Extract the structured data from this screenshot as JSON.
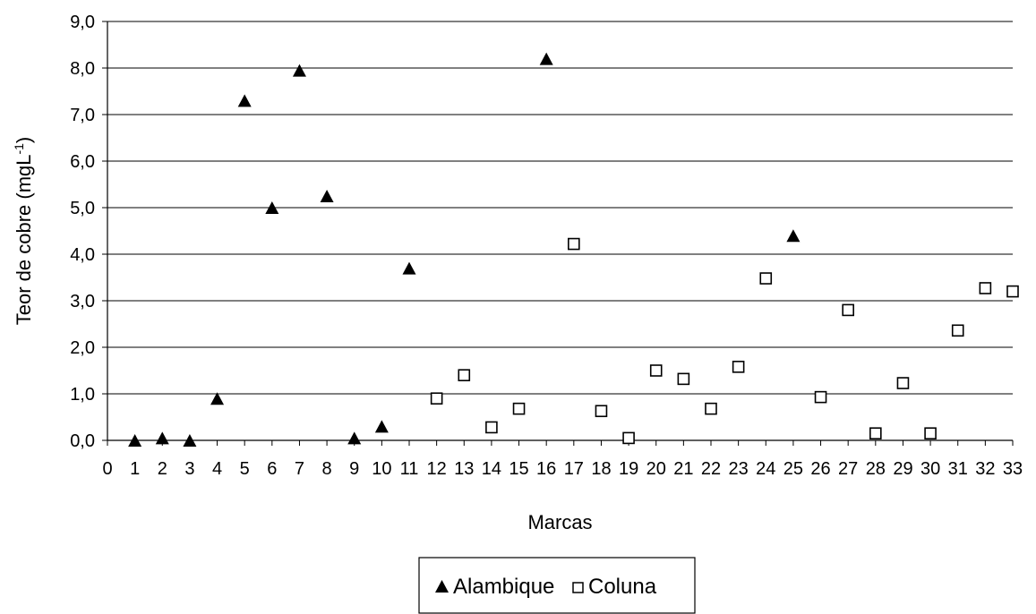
{
  "chart_data": {
    "type": "scatter",
    "title": "",
    "xlabel": "Marcas",
    "ylabel": "Teor de cobre (mgL",
    "ylabel_superscript": "-1",
    "ylabel_close": ")",
    "xlim": [
      0,
      33
    ],
    "ylim": [
      0,
      9
    ],
    "x_ticks": [
      0,
      1,
      2,
      3,
      4,
      5,
      6,
      7,
      8,
      9,
      10,
      11,
      12,
      13,
      14,
      15,
      16,
      17,
      18,
      19,
      20,
      21,
      22,
      23,
      24,
      25,
      26,
      27,
      28,
      29,
      30,
      31,
      32,
      33
    ],
    "y_ticks": [
      "0,0",
      "1,0",
      "2,0",
      "3,0",
      "4,0",
      "5,0",
      "6,0",
      "7,0",
      "8,0",
      "9,0"
    ],
    "grid": "horizontal",
    "legend_position": "bottom",
    "series": [
      {
        "name": "Alambique",
        "marker": "triangle-filled",
        "color": "#000000",
        "points": [
          {
            "x": 1,
            "y": 0.0
          },
          {
            "x": 2,
            "y": 0.05
          },
          {
            "x": 3,
            "y": 0.0
          },
          {
            "x": 4,
            "y": 0.9
          },
          {
            "x": 5,
            "y": 7.3
          },
          {
            "x": 6,
            "y": 5.0
          },
          {
            "x": 7,
            "y": 7.95
          },
          {
            "x": 8,
            "y": 5.25
          },
          {
            "x": 9,
            "y": 0.05
          },
          {
            "x": 10,
            "y": 0.3
          },
          {
            "x": 11,
            "y": 3.7
          },
          {
            "x": 16,
            "y": 8.2
          },
          {
            "x": 25,
            "y": 4.4
          }
        ]
      },
      {
        "name": "Coluna",
        "marker": "square-open",
        "color": "#000000",
        "points": [
          {
            "x": 12,
            "y": 0.9
          },
          {
            "x": 13,
            "y": 1.4
          },
          {
            "x": 14,
            "y": 0.28
          },
          {
            "x": 15,
            "y": 0.68
          },
          {
            "x": 17,
            "y": 4.22
          },
          {
            "x": 18,
            "y": 0.63
          },
          {
            "x": 19,
            "y": 0.05
          },
          {
            "x": 20,
            "y": 1.5
          },
          {
            "x": 21,
            "y": 1.32
          },
          {
            "x": 22,
            "y": 0.68
          },
          {
            "x": 23,
            "y": 1.58
          },
          {
            "x": 24,
            "y": 3.48
          },
          {
            "x": 26,
            "y": 0.93
          },
          {
            "x": 27,
            "y": 2.8
          },
          {
            "x": 28,
            "y": 0.15
          },
          {
            "x": 29,
            "y": 1.23
          },
          {
            "x": 30,
            "y": 0.15
          },
          {
            "x": 31,
            "y": 2.36
          },
          {
            "x": 32,
            "y": 3.27
          },
          {
            "x": 33,
            "y": 3.2
          }
        ]
      }
    ]
  }
}
